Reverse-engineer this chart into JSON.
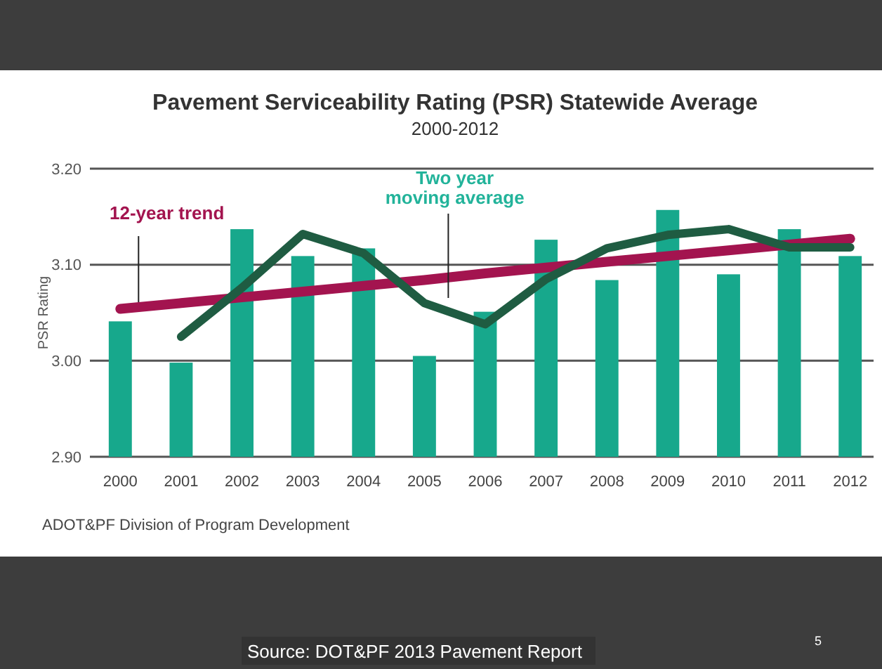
{
  "chart_data": {
    "type": "bar",
    "title": "Pavement Serviceability Rating (PSR) Statewide Average",
    "subtitle": "2000-2012",
    "ylabel": "PSR Rating",
    "categories": [
      "2000",
      "2001",
      "2002",
      "2003",
      "2004",
      "2005",
      "2006",
      "2007",
      "2008",
      "2009",
      "2010",
      "2011",
      "2012"
    ],
    "series": [
      {
        "color": "#17a88c",
        "values": [
          3.041,
          2.998,
          3.137,
          3.109,
          3.117,
          3.005,
          3.051,
          3.126,
          3.084,
          3.157,
          3.09,
          3.137,
          3.109
        ]
      },
      {
        "type": "line",
        "name": "12-year trend",
        "color": "#a3144f",
        "values": [
          3.054,
          3.06,
          3.066,
          3.072,
          3.078,
          3.084,
          3.091,
          3.097,
          3.103,
          3.109,
          3.115,
          3.121,
          3.127
        ]
      },
      {
        "type": "line",
        "name": "Two year moving average",
        "color": "#1f5c42",
        "values": [
          null,
          3.025,
          3.076,
          3.132,
          3.112,
          3.06,
          3.038,
          3.085,
          3.117,
          3.131,
          3.137,
          3.118,
          3.118
        ]
      }
    ],
    "ylim": [
      2.9,
      3.2
    ],
    "yticks": [
      {
        "value": 2.9,
        "label": "2.90"
      },
      {
        "value": 3.0,
        "label": "3.00"
      },
      {
        "value": 3.1,
        "label": "3.10"
      },
      {
        "value": 3.2,
        "label": "3.20"
      }
    ],
    "grid": "y",
    "annotations": [
      "ADOT&PF Division of Program Development",
      "Source: DOT&PF 2013 Pavement Report",
      "5"
    ]
  }
}
